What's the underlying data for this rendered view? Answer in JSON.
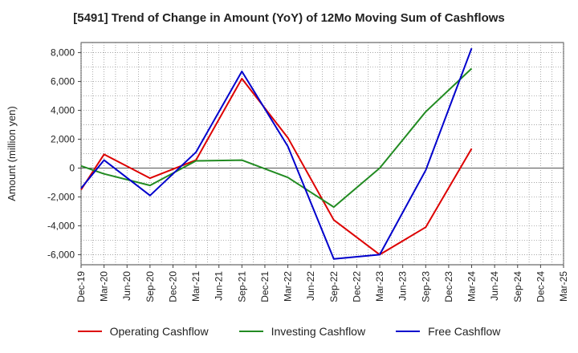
{
  "chart_data": {
    "type": "line",
    "title": "[5491]  Trend of Change in Amount (YoY) of 12Mo Moving Sum of Cashflows",
    "xlabel": "",
    "ylabel": "Amount (million yen)",
    "ylim": [
      -6700,
      8700
    ],
    "yticks": [
      -6000,
      -4000,
      -2000,
      0,
      2000,
      4000,
      6000,
      8000
    ],
    "ytick_labels": [
      "-6,000",
      "-4,000",
      "-2,000",
      "0",
      "2,000",
      "4,000",
      "6,000",
      "8,000"
    ],
    "categories": [
      "Dec-19",
      "Mar-20",
      "Jun-20",
      "Sep-20",
      "Dec-20",
      "Mar-21",
      "Jun-21",
      "Sep-21",
      "Dec-21",
      "Mar-22",
      "Jun-22",
      "Sep-22",
      "Dec-22",
      "Mar-23",
      "Jun-23",
      "Sep-23",
      "Dec-23",
      "Mar-24",
      "Jun-24",
      "Sep-24",
      "Dec-24",
      "Mar-25"
    ],
    "grid": true,
    "legend_position": "bottom",
    "series": [
      {
        "name": "Operating Cashflow",
        "color": "#dd0000",
        "values": [
          -1500,
          950,
          null,
          -700,
          null,
          550,
          null,
          6200,
          null,
          2100,
          null,
          -3600,
          null,
          -6000,
          null,
          -4100,
          null,
          1350,
          null,
          null,
          null,
          null
        ]
      },
      {
        "name": "Investing Cashflow",
        "color": "#228B22",
        "values": [
          150,
          -400,
          null,
          -1200,
          null,
          500,
          null,
          550,
          null,
          -650,
          null,
          -2700,
          null,
          0,
          null,
          3900,
          null,
          6900,
          null,
          null,
          null,
          null
        ]
      },
      {
        "name": "Free Cashflow",
        "color": "#0000cc",
        "values": [
          -1400,
          550,
          null,
          -1900,
          null,
          1100,
          null,
          6700,
          null,
          1500,
          null,
          -6300,
          null,
          -6000,
          null,
          -150,
          null,
          8300,
          null,
          null,
          null,
          null
        ]
      }
    ]
  }
}
